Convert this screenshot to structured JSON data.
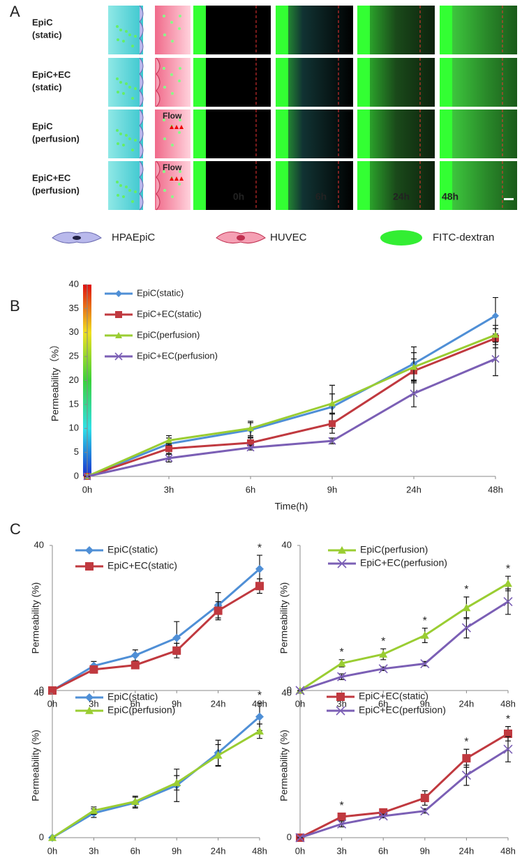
{
  "panel_a": {
    "panel": "A",
    "rows": [
      [
        "EpiC",
        "(static)"
      ],
      [
        "EpiC+EC",
        "(static)"
      ],
      [
        "EpiC",
        "(perfusion)"
      ],
      [
        "EpiC+EC",
        "(perfusion)"
      ]
    ],
    "flow": [
      "Flow",
      "Flow"
    ],
    "times": [
      "0h",
      "6h",
      "24h",
      "48h"
    ],
    "legend": [
      "HPAEpiC",
      "HUVEC",
      "FITC-dextran"
    ]
  },
  "chart_data": [
    {
      "type": "line",
      "panel": "B",
      "x_label": "Time(h)",
      "y_label": "Permeability（%）",
      "categories": [
        "0h",
        "3h",
        "6h",
        "9h",
        "24h",
        "48h"
      ],
      "ylim": [
        0,
        40
      ],
      "yticks": [
        0,
        5,
        10,
        15,
        20,
        25,
        30,
        35,
        40
      ],
      "grid": false,
      "series": [
        {
          "name": "EpiC(static)",
          "color": "#4f8fd6",
          "marker": "diamond",
          "values": [
            0,
            6.8,
            9.7,
            14.5,
            23.5,
            33.5
          ],
          "errors": [
            0,
            1.2,
            1.5,
            4.5,
            3.5,
            3.8
          ]
        },
        {
          "name": "EpiC+EC(static)",
          "color": "#c0393f",
          "marker": "square",
          "values": [
            0,
            5.8,
            7.0,
            11.0,
            22.0,
            28.8
          ],
          "errors": [
            0,
            1.0,
            1.0,
            2.0,
            2.5,
            2.0
          ]
        },
        {
          "name": "EpiC(perfusion)",
          "color": "#9acd32",
          "marker": "triangle",
          "values": [
            0,
            7.5,
            10.0,
            15.2,
            22.8,
            29.5
          ],
          "errors": [
            0,
            1.0,
            1.5,
            2.0,
            3.0,
            2.0
          ]
        },
        {
          "name": "EpiC+EC(perfusion)",
          "color": "#7b5fb5",
          "marker": "x",
          "values": [
            0,
            3.8,
            6.0,
            7.4,
            17.3,
            24.5
          ],
          "errors": [
            0,
            0.8,
            0.5,
            0.6,
            2.8,
            3.5
          ]
        }
      ]
    },
    {
      "type": "line",
      "panel": "C",
      "y_label": "Permeability (%)",
      "categories": [
        "0h",
        "3h",
        "6h",
        "9h",
        "24h",
        "48h"
      ],
      "ylim": [
        0,
        40
      ],
      "yticks": [
        0,
        40
      ],
      "significance": [
        null,
        null,
        null,
        null,
        null,
        "*"
      ],
      "series": [
        {
          "name": "EpiC(static)",
          "color": "#4f8fd6",
          "marker": "diamond",
          "values": [
            0,
            6.8,
            9.7,
            14.5,
            23.5,
            33.5
          ],
          "errors": [
            0,
            1.2,
            1.5,
            4.5,
            3.5,
            3.8
          ]
        },
        {
          "name": "EpiC+EC(static)",
          "color": "#c0393f",
          "marker": "square",
          "values": [
            0,
            5.8,
            7.0,
            11.0,
            22.0,
            28.8
          ],
          "errors": [
            0,
            1.0,
            1.0,
            2.0,
            2.5,
            2.0
          ]
        }
      ]
    },
    {
      "type": "line",
      "y_label": "Permeability (%)",
      "categories": [
        "0h",
        "3h",
        "6h",
        "9h",
        "24h",
        "48h"
      ],
      "ylim": [
        0,
        40
      ],
      "yticks": [
        0,
        40
      ],
      "significance": [
        null,
        "*",
        "*",
        "*",
        "*",
        "*"
      ],
      "series": [
        {
          "name": "EpiC(perfusion)",
          "color": "#9acd32",
          "marker": "triangle",
          "values": [
            0,
            7.5,
            10.0,
            15.2,
            22.8,
            29.5
          ],
          "errors": [
            0,
            1.0,
            1.5,
            2.0,
            3.0,
            2.0
          ]
        },
        {
          "name": "EpiC+EC(perfusion)",
          "color": "#7b5fb5",
          "marker": "x",
          "values": [
            0,
            3.8,
            6.0,
            7.4,
            17.3,
            24.5
          ],
          "errors": [
            0,
            0.8,
            0.5,
            0.6,
            2.8,
            3.5
          ]
        }
      ]
    },
    {
      "type": "line",
      "y_label": "Permeability (%)",
      "categories": [
        "0h",
        "3h",
        "6h",
        "9h",
        "24h",
        "48h"
      ],
      "ylim": [
        0,
        40
      ],
      "yticks": [
        0,
        40
      ],
      "significance": [
        null,
        null,
        null,
        null,
        null,
        "*"
      ],
      "series": [
        {
          "name": "EpiC(static)",
          "color": "#4f8fd6",
          "marker": "diamond",
          "values": [
            0,
            6.8,
            9.7,
            14.5,
            23.5,
            33.5
          ],
          "errors": [
            0,
            1.2,
            1.5,
            4.5,
            3.5,
            3.8
          ]
        },
        {
          "name": "EpiC(perfusion)",
          "color": "#9acd32",
          "marker": "triangle",
          "values": [
            0,
            7.5,
            10.0,
            15.2,
            22.8,
            29.5
          ],
          "errors": [
            0,
            1.0,
            1.5,
            2.0,
            3.0,
            2.0
          ]
        }
      ]
    },
    {
      "type": "line",
      "y_label": "Permeability (%)",
      "categories": [
        "0h",
        "3h",
        "6h",
        "9h",
        "24h",
        "48h"
      ],
      "ylim": [
        0,
        40
      ],
      "yticks": [
        0,
        40
      ],
      "significance": [
        null,
        "*",
        null,
        null,
        "*",
        "*"
      ],
      "series": [
        {
          "name": "EpiC+EC(static)",
          "color": "#c0393f",
          "marker": "square",
          "values": [
            0,
            5.8,
            7.0,
            11.0,
            22.0,
            28.8
          ],
          "errors": [
            0,
            1.0,
            1.0,
            2.0,
            2.5,
            2.0
          ]
        },
        {
          "name": "EpiC+EC(perfusion)",
          "color": "#7b5fb5",
          "marker": "x",
          "values": [
            0,
            3.8,
            6.0,
            7.4,
            17.3,
            24.5
          ],
          "errors": [
            0,
            0.8,
            0.5,
            0.6,
            2.8,
            3.5
          ]
        }
      ]
    }
  ]
}
